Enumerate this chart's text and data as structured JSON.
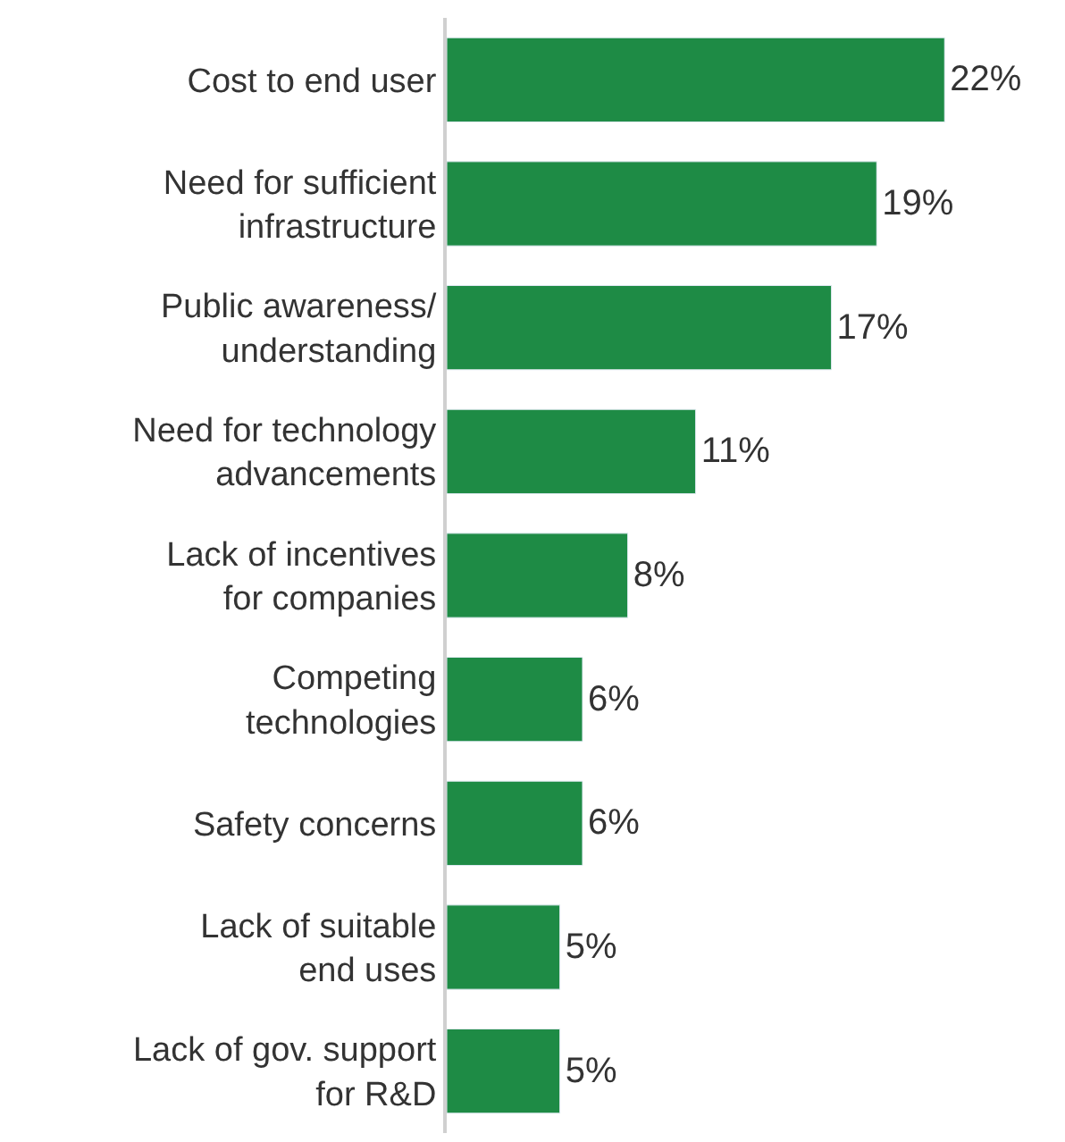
{
  "chart_data": {
    "type": "bar",
    "orientation": "horizontal",
    "color": "#1e8b45",
    "categories": [
      "Cost to end user",
      "Need for sufficient\ninfrastructure",
      "Public awareness/\nunderstanding",
      "Need for technology\nadvancements",
      "Lack of incentives\nfor companies",
      "Competing\ntechnologies",
      "Safety concerns",
      "Lack of suitable\nend uses",
      "Lack of gov. support\nfor R&D"
    ],
    "values": [
      22,
      19,
      17,
      11,
      8,
      6,
      6,
      5,
      5
    ],
    "value_labels": [
      "22%",
      "19%",
      "17%",
      "11%",
      "8%",
      "6%",
      "6%",
      "5%",
      "5%"
    ],
    "legend": false
  }
}
